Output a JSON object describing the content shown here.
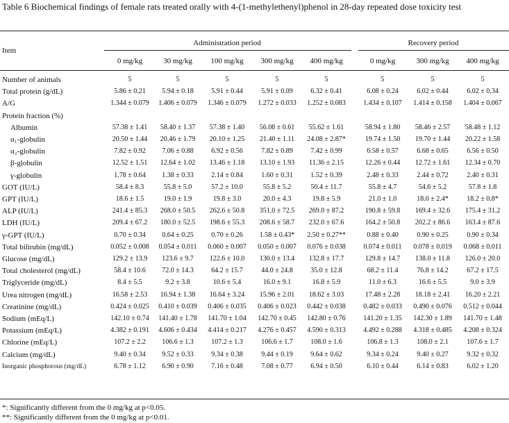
{
  "table": {
    "title": "Table 6   Biochemical findings of female rats treated orally with 4-(1-methylethenyl)phenol in 28-day repeated dose toxicity test",
    "item_header": "Item",
    "groups": [
      {
        "label": "Administration period",
        "doses": [
          "0 mg/kg",
          "30 mg/kg",
          "100 mg/kg",
          "300 mg/kg",
          "400 mg/kg"
        ]
      },
      {
        "label": "Recovery period",
        "doses": [
          "0 mg/kg",
          "300 mg/kg",
          "400 mg/kg"
        ]
      }
    ],
    "rows": [
      {
        "item": "Number of animals",
        "values": [
          "5",
          "5",
          "5",
          "5",
          "5",
          "5",
          "5",
          "5"
        ]
      },
      {
        "item": "Total protein (g/dL)",
        "values": [
          "5.86 ± 0.21",
          "5.94 ± 0.18",
          "5.91 ± 0.44",
          "5.91 ± 0.09",
          "6.32 ± 0.41",
          "6.08 ± 0.24",
          "6.02 ± 0.44",
          "6.02 ± 0.34"
        ]
      },
      {
        "item": "A/G",
        "values": [
          "1.344 ± 0.079",
          "1.406 ± 0.079",
          "1.346 ± 0.079",
          "1.272 ± 0.033",
          "1.252 ± 0.083",
          "1.434 ± 0.107",
          "1.414 ± 0.158",
          "1.404 ± 0.067"
        ]
      },
      {
        "item": "Protein fraction (%)",
        "subrows": [
          {
            "item": "Albumin",
            "values": [
              "57.38 ± 1.41",
              "58.40 ± 1.37",
              "57.38 ± 1.40",
              "56.08 ± 0.61",
              "55.62 ± 1.61",
              "58.94 ± 1.80",
              "58.46 ± 2.57",
              "58.48 ± 1.12"
            ]
          },
          {
            "item": "α₁-globulin",
            "values": [
              "20.50 ± 1.44",
              "20.46 ± 1.79",
              "20.10 ± 1.25",
              "21.40 ± 1.11",
              "24.08 ± 2.87*",
              "19.74 ± 1.50",
              "19.70 ± 1.44",
              "20.22 ± 1.58"
            ]
          },
          {
            "item": "α₂-globulin",
            "values": [
              "7.82 ± 0.92",
              "7.06 ± 0.88",
              "6.92 ± 0.56",
              "7.82 ± 0.89",
              "7.42 ± 0.99",
              "6.58 ± 0.57",
              "6.68 ± 0.65",
              "6.56 ± 0.50"
            ]
          },
          {
            "item": "β-globulin",
            "values": [
              "12.52 ± 1.51",
              "12.64 ± 1.02",
              "13.46 ± 1.18",
              "13.10 ± 1.93",
              "11.36 ± 2.15",
              "12.26 ± 0.44",
              "12.72 ± 1.61",
              "12.34 ± 0.70"
            ]
          },
          {
            "item": "γ-globulin",
            "values": [
              "1.78 ± 0.64",
              "1.38 ± 0.33",
              "2.14 ± 0.84",
              "1.60 ± 0.31",
              "1.52 ± 0.39",
              "2.48 ± 0.33",
              "2.44 ± 0.72",
              "2.40 ± 0.31"
            ]
          }
        ]
      },
      {
        "item": "GOT (IU/L)",
        "values": [
          "58.4 ± 8.3",
          "55.8 ± 5.0",
          "57.2 ± 10.0",
          "55.8 ± 5.2",
          "50.4 ± 11.7",
          "55.8 ± 4.7",
          "54.6 ± 5.2",
          "57.8 ± 1.8"
        ]
      },
      {
        "item": "GPT (IU/L)",
        "values": [
          "18.6 ± 1.5",
          "19.0 ± 1.9",
          "19.8 ± 3.0",
          "20.0 ± 4.3",
          "19.8 ± 5.9",
          "21.0 ± 1.0",
          "18.0 ± 2.4*",
          "18.2 ± 0.8*"
        ]
      },
      {
        "item": "ALP (IU/L)",
        "values": [
          "241.4 ± 85.3",
          "268.0 ± 50.5",
          "262.6 ± 50.8",
          "351.0 ± 72.5",
          "269.0 ± 87.2",
          "190.8 ± 59.8",
          "169.4 ± 32.6",
          "175.4 ± 31.2"
        ]
      },
      {
        "item": "LDH (IU/L)",
        "values": [
          "209.4 ± 67.2",
          "180.0 ± 52.5",
          "198.6 ± 55.3",
          "208.6 ± 58.7",
          "232.0 ± 67.6",
          "164.2 ± 50.8",
          "202.2 ± 86.6",
          "163.4 ± 87.6"
        ]
      },
      {
        "item": "γ-GPT (IU/L)",
        "values": [
          "0.70 ± 0.34",
          "0.64 ± 0.25",
          "0.70 ± 0.26",
          "1.58 ± 0.43*",
          "2.50 ± 0.27**",
          "0.88 ± 0.40",
          "0.90 ± 0.25",
          "0.90 ± 0.34"
        ]
      },
      {
        "item": "Total bilirubin (mg/dL)",
        "values": [
          "0.052 ± 0.008",
          "0.054 ± 0.011",
          "0.060 ± 0.007",
          "0.050 ± 0.007",
          "0.076 ± 0.038",
          "0.074 ± 0.011",
          "0.078 ± 0.019",
          "0.068 ± 0.011"
        ]
      },
      {
        "item": "Glucose (mg/dL)",
        "values": [
          "129.2 ± 13.9",
          "123.6 ± 9.7",
          "122.6 ± 10.0",
          "130.0 ± 13.4",
          "132.8 ± 17.7",
          "129.8 ± 14.7",
          "138.0 ± 11.8",
          "126.0 ± 20.0"
        ]
      },
      {
        "item": "Total cholesterol (mg/dL)",
        "values": [
          "58.4 ± 10.6",
          "72.0 ± 14.3",
          "64.2 ± 15.7",
          "44.0 ± 24.8",
          "35.0 ± 12.8",
          "68.2 ± 11.4",
          "76.8 ± 14.2",
          "67.2 ± 17.5"
        ]
      },
      {
        "item": "Triglyceride (mg/dL)",
        "values": [
          "8.4 ± 5.5",
          "9.2 ± 3.8",
          "10.6 ± 5.4",
          "16.0 ± 9.1",
          "16.8 ± 5.9",
          "11.0 ± 6.3",
          "16.6 ± 5.5",
          "9.0 ± 3.9"
        ]
      },
      {
        "item": "Urea nitrogen (mg/dL)",
        "values": [
          "16.58 ± 2.53",
          "16.94 ± 1.38",
          "16.64 ± 3.24",
          "15.96 ± 2.01",
          "18.62 ± 3.03",
          "17.48 ± 2.28",
          "18.18 ± 2.41",
          "16.20 ± 2.21"
        ]
      },
      {
        "item": "Creatinine (mg/dL)",
        "values": [
          "0.424 ± 0.025",
          "0.410 ± 0.039",
          "0.406 ± 0.035",
          "0.406 ± 0.023",
          "0.442 ± 0.038",
          "0.482 ± 0.033",
          "0.490 ± 0.076",
          "0.512 ± 0.044"
        ]
      },
      {
        "item": "Sodium (mEq/L)",
        "values": [
          "142.10 ± 0.74",
          "141.40 ± 1.78",
          "141.70 ± 1.04",
          "142.70 ± 0.45",
          "142.80 ± 0.76",
          "141.20 ± 1.35",
          "142.30 ± 1.89",
          "141.70 ± 1.48"
        ]
      },
      {
        "item": "Potassium (mEq/L)",
        "values": [
          "4.382 ± 0.191",
          "4.606 ± 0.434",
          "4.414 ± 0.217",
          "4.276 ± 0.457",
          "4.590 ± 0.313",
          "4.492 ± 0.288",
          "4.318 ± 0.485",
          "4.208 ± 0.324"
        ]
      },
      {
        "item": "Chlorine (mEq/L)",
        "values": [
          "107.2 ± 2.2",
          "106.6 ± 1.3",
          "107.2 ± 1.3",
          "106.6 ± 1.7",
          "108.0 ± 1.6",
          "106.8 ± 1.3",
          "108.0 ± 2.1",
          "107.6 ± 1.7"
        ]
      },
      {
        "item": "Calcium (mg/dL)",
        "values": [
          "9.40 ± 0.34",
          "9.52 ± 0.33",
          "9.34 ± 0.38",
          "9.44 ± 0.19",
          "9.64 ± 0.62",
          "9.34 ± 0.24",
          "9.40 ± 0.27",
          "9.32 ± 0.32"
        ]
      },
      {
        "item": "Inorganic phosphorous (mg/dL)",
        "values": [
          "6.78 ± 1.12",
          "6.90 ± 0.90",
          "7.16 ± 0.48",
          "7.08 ± 0.77",
          "6.94 ± 0.50",
          "6.10 ± 0.44",
          "6.14 ± 0.83",
          "6.02 ± 1.20"
        ]
      }
    ],
    "footnotes": [
      "*: Significantly different from the 0 mg/kg at p<0.05.",
      "**: Significantly different from the 0 mg/kg at p<0.01."
    ]
  }
}
